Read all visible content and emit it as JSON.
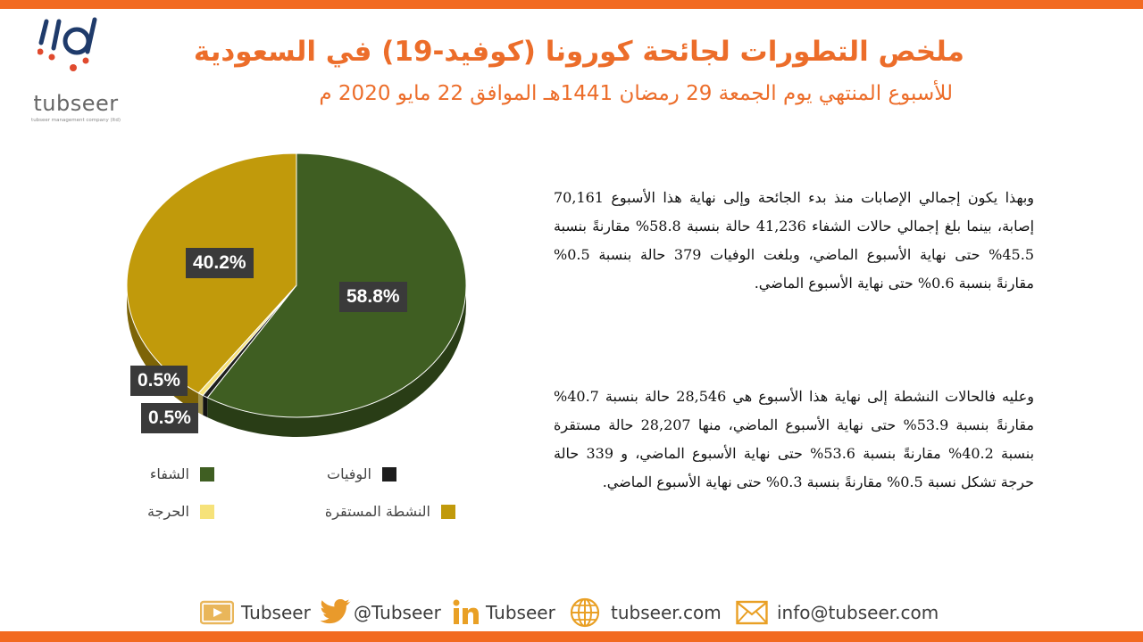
{
  "brand": {
    "logo_text": "tubseer",
    "logo_sub": "tubseer management company (ltd)"
  },
  "header": {
    "title": "ملخص التطورات لجائحة كورونا (كوفيد-19) في السعودية",
    "subtitle": "للأسبوع المنتهي يوم الجمعة 29 رمضان 1441هـ الموافق 22 مايو 2020 م"
  },
  "chart_data": {
    "type": "pie",
    "title": "",
    "slices": [
      {
        "label": "الشفاء",
        "value": 58.8,
        "display": "58.8%",
        "color": "#3f5e22"
      },
      {
        "label": "الوفيات",
        "value": 0.5,
        "display": "0.5%",
        "color": "#1d1d1d"
      },
      {
        "label": "الحرجة",
        "value": 0.5,
        "display": "0.5%",
        "color": "#f6e27a"
      },
      {
        "label": "النشطة المستقرة",
        "value": 40.2,
        "display": "40.2%",
        "color": "#c19a0b"
      }
    ],
    "legend": "bottom",
    "three_d": true
  },
  "legend": {
    "items": [
      {
        "label": "الشفاء",
        "color": "#3f5e22"
      },
      {
        "label": "الوفيات",
        "color": "#1d1d1d"
      },
      {
        "label": "الحرجة",
        "color": "#f6e27a"
      },
      {
        "label": "النشطة المستقرة",
        "color": "#c19a0b"
      }
    ]
  },
  "paragraphs": {
    "p1": "وبهذا يكون إجمالي الإصابات منذ بدء الجائحة وإلى نهاية هذا الأسبوع 70,161 إصابة، بينما بلغ إجمالي حالات الشفاء 41,236 حالة بنسبة 58.8% مقارنةً بنسبة 45.5% حتى نهاية الأسبوع الماضي، وبلغت الوفيات 379 حالة بنسبة 0.5% مقارنةً بنسبة 0.6% حتى نهاية الأسبوع الماضي.",
    "p2": "وعليه فالحالات النشطة إلى نهاية هذا الأسبوع هي 28,546 حالة بنسبة 40.7% مقارنةً بنسبة 53.9% حتى نهاية الأسبوع الماضي، منها 28,207 حالة مستقرة بنسبة 40.2% مقارنةً بنسبة 53.6% حتى نهاية الأسبوع الماضي، و 339 حالة حرجة تشكل نسبة 0.5% مقارنةً بنسبة 0.3% حتى نهاية الأسبوع الماضي."
  },
  "footer": {
    "youtube": "Tubseer",
    "twitter": "@Tubseer",
    "linkedin": "Tubseer",
    "website": "tubseer.com",
    "email": "info@tubseer.com"
  },
  "colors": {
    "accent": "#f26a21",
    "youtube": "#e9b65a",
    "twitter": "#e99a2b",
    "linkedin": "#e9a025"
  }
}
